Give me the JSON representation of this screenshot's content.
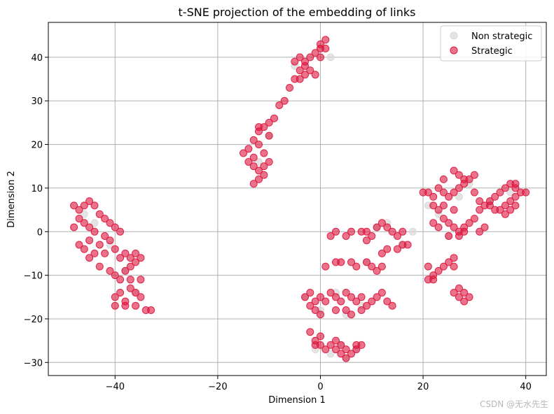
{
  "chart_data": {
    "type": "scatter",
    "title": "t-SNE projection of the embedding of links",
    "xlabel": "Dimension 1",
    "ylabel": "Dimension 2",
    "xlim": [
      -53,
      44
    ],
    "ylim": [
      -33,
      48
    ],
    "xticks": [
      -40,
      -20,
      0,
      20,
      40
    ],
    "yticks": [
      -30,
      -20,
      -10,
      0,
      10,
      20,
      30,
      40
    ],
    "xtick_labels": [
      "−40",
      "−20",
      "0",
      "20",
      "40"
    ],
    "ytick_labels": [
      "−30",
      "−20",
      "−10",
      "0",
      "10",
      "20",
      "30",
      "40"
    ],
    "grid": true,
    "legend_position": "top-right",
    "series": [
      {
        "name": "Non strategic",
        "color": "#d9d9d9",
        "points": [
          [
            -46,
            4
          ],
          [
            -44,
            2
          ],
          [
            -41,
            -3
          ],
          [
            -38,
            -9
          ],
          [
            -36,
            -14
          ],
          [
            -12,
            16
          ],
          [
            -10,
            22
          ],
          [
            -5,
            38
          ],
          [
            0,
            42
          ],
          [
            2,
            40
          ],
          [
            -3,
            -15
          ],
          [
            0,
            -18
          ],
          [
            3,
            -14
          ],
          [
            5,
            -19
          ],
          [
            8,
            -17
          ],
          [
            -1,
            -27
          ],
          [
            2,
            -28
          ],
          [
            5,
            -29
          ],
          [
            4,
            -26
          ],
          [
            7,
            -27
          ],
          [
            11,
            1
          ],
          [
            13,
            2
          ],
          [
            9,
            -7
          ],
          [
            16,
            -3
          ],
          [
            21,
            6
          ],
          [
            23,
            4
          ],
          [
            27,
            8
          ],
          [
            29,
            11
          ],
          [
            33,
            7
          ],
          [
            37,
            9
          ],
          [
            25,
            -1
          ],
          [
            18,
            0
          ]
        ]
      },
      {
        "name": "Strategic",
        "color": "#dc143c",
        "points": [
          [
            -48,
            6
          ],
          [
            -47,
            5
          ],
          [
            -46,
            6
          ],
          [
            -45,
            7
          ],
          [
            -44,
            6
          ],
          [
            -47,
            3
          ],
          [
            -46,
            2
          ],
          [
            -48,
            1
          ],
          [
            -45,
            1
          ],
          [
            -43,
            4
          ],
          [
            -47,
            -3
          ],
          [
            -46,
            -4
          ],
          [
            -45,
            -2
          ],
          [
            -44,
            -5
          ],
          [
            -45,
            -6
          ],
          [
            -42,
            -1
          ],
          [
            -42,
            3
          ],
          [
            -41,
            2
          ],
          [
            -40,
            1
          ],
          [
            -39,
            0
          ],
          [
            -43,
            -3
          ],
          [
            -42,
            -5
          ],
          [
            -41,
            -2
          ],
          [
            -40,
            -4
          ],
          [
            -39,
            -6
          ],
          [
            -38,
            -5
          ],
          [
            -37,
            -6
          ],
          [
            -36,
            -7
          ],
          [
            -35,
            -6
          ],
          [
            -36,
            -5
          ],
          [
            -41,
            -9
          ],
          [
            -40,
            -10
          ],
          [
            -39,
            -11
          ],
          [
            -38,
            -9
          ],
          [
            -37,
            -8
          ],
          [
            -39,
            -14
          ],
          [
            -40,
            -15
          ],
          [
            -38,
            -16
          ],
          [
            -37,
            -13
          ],
          [
            -36,
            -14
          ],
          [
            -35,
            -15
          ],
          [
            -36,
            -17
          ],
          [
            -38,
            -17
          ],
          [
            -34,
            -18
          ],
          [
            -33,
            -18
          ],
          [
            -35,
            -11
          ],
          [
            -37,
            -11
          ],
          [
            -40,
            -17
          ],
          [
            -44,
            0
          ],
          [
            -43,
            -8
          ],
          [
            -15,
            18
          ],
          [
            -14,
            19
          ],
          [
            -13,
            17
          ],
          [
            -12,
            20
          ],
          [
            -14,
            16
          ],
          [
            -13,
            15
          ],
          [
            -12,
            14
          ],
          [
            -11,
            13
          ],
          [
            -12,
            12
          ],
          [
            -13,
            11
          ],
          [
            -11,
            15
          ],
          [
            -10,
            16
          ],
          [
            -11,
            18
          ],
          [
            -13,
            21
          ],
          [
            -12,
            23
          ],
          [
            -11,
            24
          ],
          [
            -10,
            25
          ],
          [
            -9,
            26
          ],
          [
            -10,
            22
          ],
          [
            -12,
            24
          ],
          [
            -8,
            29
          ],
          [
            -7,
            30
          ],
          [
            -6,
            33
          ],
          [
            -5,
            35
          ],
          [
            -4,
            37
          ],
          [
            -5,
            39
          ],
          [
            -4,
            40
          ],
          [
            -3,
            39
          ],
          [
            -2,
            40
          ],
          [
            -3,
            38
          ],
          [
            -1,
            41
          ],
          [
            0,
            42
          ],
          [
            0,
            43
          ],
          [
            1,
            44
          ],
          [
            1,
            42
          ],
          [
            0,
            40
          ],
          [
            -2,
            37
          ],
          [
            -1,
            36
          ],
          [
            -3,
            36
          ],
          [
            -4,
            35
          ],
          [
            -3,
            -15
          ],
          [
            -2,
            -14
          ],
          [
            -1,
            -16
          ],
          [
            0,
            -15
          ],
          [
            1,
            -16
          ],
          [
            2,
            -14
          ],
          [
            3,
            -15
          ],
          [
            4,
            -16
          ],
          [
            5,
            -14
          ],
          [
            6,
            -15
          ],
          [
            7,
            -16
          ],
          [
            8,
            -15
          ],
          [
            9,
            -17
          ],
          [
            10,
            -16
          ],
          [
            11,
            -15
          ],
          [
            12,
            -14
          ],
          [
            13,
            -16
          ],
          [
            14,
            -17
          ],
          [
            3,
            -18
          ],
          [
            5,
            -18
          ],
          [
            -2,
            -17
          ],
          [
            -1,
            -18
          ],
          [
            0,
            -19
          ],
          [
            6,
            -19
          ],
          [
            8,
            -18
          ],
          [
            1,
            -8
          ],
          [
            3,
            -7
          ],
          [
            4,
            -7
          ],
          [
            6,
            -7
          ],
          [
            7,
            -8
          ],
          [
            2,
            -1
          ],
          [
            3,
            0
          ],
          [
            5,
            -1
          ],
          [
            6,
            0
          ],
          [
            8,
            0
          ],
          [
            9,
            0
          ],
          [
            10,
            -1
          ],
          [
            9,
            -2
          ],
          [
            9,
            -7
          ],
          [
            10,
            -8
          ],
          [
            11,
            -9
          ],
          [
            12,
            -8
          ],
          [
            11,
            1
          ],
          [
            12,
            2
          ],
          [
            13,
            1
          ],
          [
            14,
            0
          ],
          [
            15,
            -1
          ],
          [
            15,
            -4
          ],
          [
            13,
            -4
          ],
          [
            12,
            -5
          ],
          [
            16,
            -3
          ],
          [
            17,
            -3
          ],
          [
            16,
            0
          ],
          [
            -2,
            -23
          ],
          [
            -1,
            -25
          ],
          [
            0,
            -26
          ],
          [
            1,
            -27
          ],
          [
            2,
            -26
          ],
          [
            3,
            -25
          ],
          [
            3,
            -27
          ],
          [
            4,
            -28
          ],
          [
            5,
            -29
          ],
          [
            5,
            -27
          ],
          [
            4,
            -26
          ],
          [
            7,
            -26
          ],
          [
            8,
            -26
          ],
          [
            0,
            -24
          ],
          [
            7,
            -27
          ],
          [
            6,
            -28
          ],
          [
            -1,
            -26
          ],
          [
            21,
            9
          ],
          [
            22,
            8
          ],
          [
            23,
            10
          ],
          [
            24,
            9
          ],
          [
            25,
            8
          ],
          [
            26,
            9
          ],
          [
            27,
            10
          ],
          [
            28,
            11
          ],
          [
            29,
            12
          ],
          [
            30,
            13
          ],
          [
            26,
            14
          ],
          [
            27,
            13
          ],
          [
            28,
            12
          ],
          [
            24,
            12
          ],
          [
            22,
            6
          ],
          [
            23,
            5
          ],
          [
            24,
            3
          ],
          [
            25,
            2
          ],
          [
            26,
            1
          ],
          [
            27,
            0
          ],
          [
            28,
            1
          ],
          [
            29,
            2
          ],
          [
            30,
            3
          ],
          [
            31,
            5
          ],
          [
            32,
            6
          ],
          [
            33,
            7
          ],
          [
            34,
            8
          ],
          [
            35,
            9
          ],
          [
            36,
            10
          ],
          [
            37,
            11
          ],
          [
            38,
            10
          ],
          [
            39,
            9
          ],
          [
            38,
            8
          ],
          [
            37,
            7
          ],
          [
            36,
            6
          ],
          [
            35,
            5
          ],
          [
            34,
            5
          ],
          [
            33,
            6
          ],
          [
            32,
            1
          ],
          [
            31,
            0
          ],
          [
            36,
            4
          ],
          [
            38,
            6
          ],
          [
            37,
            5
          ],
          [
            22,
            2
          ],
          [
            23,
            1
          ],
          [
            25,
            -1
          ],
          [
            27,
            -1
          ],
          [
            28,
            0
          ],
          [
            24,
            6
          ],
          [
            26,
            5
          ],
          [
            21,
            -8
          ],
          [
            21,
            -11
          ],
          [
            22,
            -10
          ],
          [
            23,
            -9
          ],
          [
            24,
            -8
          ],
          [
            25,
            -7
          ],
          [
            26,
            -6
          ],
          [
            26,
            -8
          ],
          [
            27,
            -13
          ],
          [
            26,
            -14
          ],
          [
            27,
            -15
          ],
          [
            28,
            -14
          ],
          [
            29,
            -15
          ],
          [
            28,
            -16
          ],
          [
            22,
            -11
          ],
          [
            20,
            9
          ],
          [
            40,
            9
          ],
          [
            38,
            11
          ],
          [
            30,
            9
          ],
          [
            31,
            7
          ]
        ]
      }
    ]
  },
  "legend": {
    "items": [
      {
        "label": "Non strategic",
        "color": "#d9d9d9"
      },
      {
        "label": "Strategic",
        "color": "#dc143c"
      }
    ]
  },
  "watermark": "CSDN @无水先生"
}
